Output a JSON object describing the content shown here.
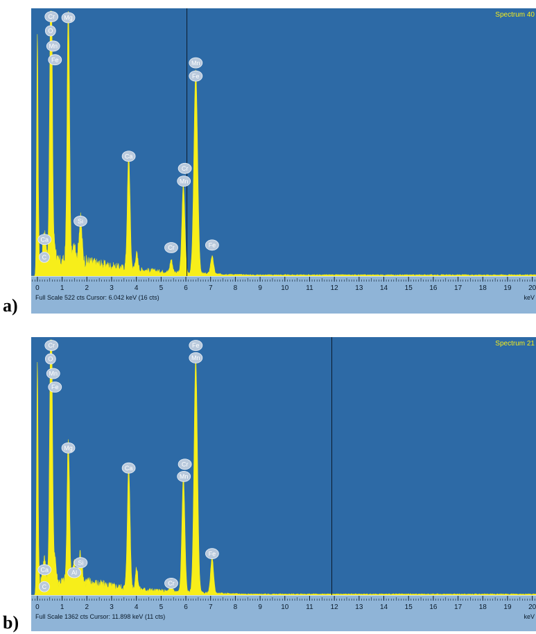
{
  "colors": {
    "background": "#2a65a0",
    "plot_area": "#2d6aa6",
    "axis_bar": "#8fb4d7",
    "spectrum": "#f7ee1a",
    "peak_label_fill": "#b9c9dc",
    "cursor_line": "#0c1a2a"
  },
  "chart_data": [
    {
      "type": "area",
      "panel_label": "a)",
      "spectrum_name": "Spectrum 40",
      "xlabel": "keV",
      "xlim": [
        -0.25,
        20.15
      ],
      "ylim": [
        0,
        522
      ],
      "x_ticks": [
        "0",
        "1",
        "2",
        "3",
        "4",
        "5",
        "6",
        "7",
        "8",
        "9",
        "10",
        "11",
        "12",
        "13",
        "14",
        "15",
        "16",
        "17",
        "18",
        "19",
        "20"
      ],
      "status": {
        "full_scale": "Full Scale 522 cts",
        "cursor": "Cursor: 6.042 keV (16 cts)"
      },
      "cursor_kev": 6.042,
      "noise_amplitude": 18,
      "peaks": [
        {
          "x": 0.0,
          "y": 478,
          "w": 0.03
        },
        {
          "x": 0.28,
          "y": 60,
          "w": 0.06
        },
        {
          "x": 0.53,
          "y": 420,
          "w": 0.045
        },
        {
          "x": 0.58,
          "y": 300,
          "w": 0.04
        },
        {
          "x": 0.7,
          "y": 35,
          "w": 0.05
        },
        {
          "x": 1.25,
          "y": 508,
          "w": 0.05
        },
        {
          "x": 1.5,
          "y": 40,
          "w": 0.05
        },
        {
          "x": 1.74,
          "y": 85,
          "w": 0.06
        },
        {
          "x": 3.69,
          "y": 225,
          "w": 0.055
        },
        {
          "x": 4.01,
          "y": 32,
          "w": 0.05
        },
        {
          "x": 5.41,
          "y": 25,
          "w": 0.05
        },
        {
          "x": 5.9,
          "y": 173,
          "w": 0.06
        },
        {
          "x": 6.4,
          "y": 400,
          "w": 0.075
        },
        {
          "x": 7.06,
          "y": 35,
          "w": 0.06
        }
      ],
      "peak_labels": [
        {
          "text": "Cr",
          "x": 0.57,
          "y": 522
        },
        {
          "text": "O",
          "x": 0.53,
          "y": 494
        },
        {
          "text": "Mn",
          "x": 0.64,
          "y": 464
        },
        {
          "text": "Fe",
          "x": 0.71,
          "y": 437
        },
        {
          "text": "Mg",
          "x": 1.25,
          "y": 520
        },
        {
          "text": "Si",
          "x": 1.74,
          "y": 119
        },
        {
          "text": "Ca",
          "x": 0.29,
          "y": 83
        },
        {
          "text": "C",
          "x": 0.28,
          "y": 48
        },
        {
          "text": "Ca",
          "x": 3.69,
          "y": 247
        },
        {
          "text": "Cr",
          "x": 5.41,
          "y": 67
        },
        {
          "text": "Cr",
          "x": 5.96,
          "y": 223
        },
        {
          "text": "Mn",
          "x": 5.92,
          "y": 198
        },
        {
          "text": "Mn",
          "x": 6.4,
          "y": 431
        },
        {
          "text": "Fe",
          "x": 6.4,
          "y": 405
        },
        {
          "text": "Fe",
          "x": 7.06,
          "y": 72
        }
      ]
    },
    {
      "type": "area",
      "panel_label": "b)",
      "spectrum_name": "Spectrum 21",
      "xlabel": "keV",
      "xlim": [
        -0.25,
        20.15
      ],
      "ylim": [
        0,
        1362
      ],
      "x_ticks": [
        "0",
        "1",
        "2",
        "3",
        "4",
        "5",
        "6",
        "7",
        "8",
        "9",
        "10",
        "11",
        "12",
        "13",
        "14",
        "15",
        "16",
        "17",
        "18",
        "19",
        "20"
      ],
      "status": {
        "full_scale": "Full Scale 1362 cts",
        "cursor": "Cursor: 11.898 keV (11 cts)"
      },
      "cursor_kev": 11.898,
      "noise_amplitude": 45,
      "peaks": [
        {
          "x": 0.0,
          "y": 1247,
          "w": 0.03
        },
        {
          "x": 0.28,
          "y": 120,
          "w": 0.06
        },
        {
          "x": 0.53,
          "y": 1050,
          "w": 0.045
        },
        {
          "x": 0.58,
          "y": 820,
          "w": 0.04
        },
        {
          "x": 0.7,
          "y": 150,
          "w": 0.05
        },
        {
          "x": 1.25,
          "y": 760,
          "w": 0.05
        },
        {
          "x": 1.49,
          "y": 105,
          "w": 0.05
        },
        {
          "x": 1.74,
          "y": 155,
          "w": 0.06
        },
        {
          "x": 3.69,
          "y": 650,
          "w": 0.055
        },
        {
          "x": 4.01,
          "y": 110,
          "w": 0.05
        },
        {
          "x": 5.41,
          "y": 45,
          "w": 0.05
        },
        {
          "x": 5.9,
          "y": 618,
          "w": 0.06
        },
        {
          "x": 6.4,
          "y": 1248,
          "w": 0.07
        },
        {
          "x": 7.06,
          "y": 190,
          "w": 0.06
        }
      ],
      "peak_labels": [
        {
          "text": "Cr",
          "x": 0.57,
          "y": 1362
        },
        {
          "text": "O",
          "x": 0.53,
          "y": 1290
        },
        {
          "text": "Mn",
          "x": 0.64,
          "y": 1212
        },
        {
          "text": "Fe",
          "x": 0.71,
          "y": 1140
        },
        {
          "text": "Mg",
          "x": 1.25,
          "y": 815
        },
        {
          "text": "Si",
          "x": 1.75,
          "y": 203
        },
        {
          "text": "Al",
          "x": 1.49,
          "y": 150
        },
        {
          "text": "Ca",
          "x": 0.29,
          "y": 165
        },
        {
          "text": "C",
          "x": 0.28,
          "y": 75
        },
        {
          "text": "Ca",
          "x": 3.69,
          "y": 708
        },
        {
          "text": "Cr",
          "x": 5.41,
          "y": 93
        },
        {
          "text": "Cr",
          "x": 5.96,
          "y": 728
        },
        {
          "text": "Mn",
          "x": 5.92,
          "y": 663
        },
        {
          "text": "Fe",
          "x": 6.4,
          "y": 1362
        },
        {
          "text": "Mn",
          "x": 6.4,
          "y": 1296
        },
        {
          "text": "Fe",
          "x": 7.06,
          "y": 251
        }
      ]
    }
  ]
}
